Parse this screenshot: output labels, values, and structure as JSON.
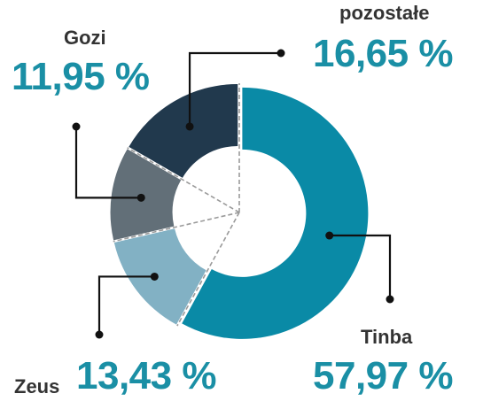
{
  "chart_data": {
    "type": "pie",
    "variant": "donut",
    "title": "",
    "slices": [
      {
        "name": "Tinba",
        "value": 57.97,
        "label": "57,97 %",
        "color": "#0a8aa6"
      },
      {
        "name": "Zeus",
        "value": 13.43,
        "label": "13,43 %",
        "color": "#82b1c4"
      },
      {
        "name": "Gozi",
        "value": 11.95,
        "label": "11,95 %",
        "color": "#626f78"
      },
      {
        "name": "pozostałe",
        "value": 16.65,
        "label": "16,65 %",
        "color": "#21394d"
      }
    ],
    "percent_color": "#1a8fa5",
    "name_color": "#333333",
    "separator_color": "#9a9a9a",
    "leader_color": "#111111"
  }
}
